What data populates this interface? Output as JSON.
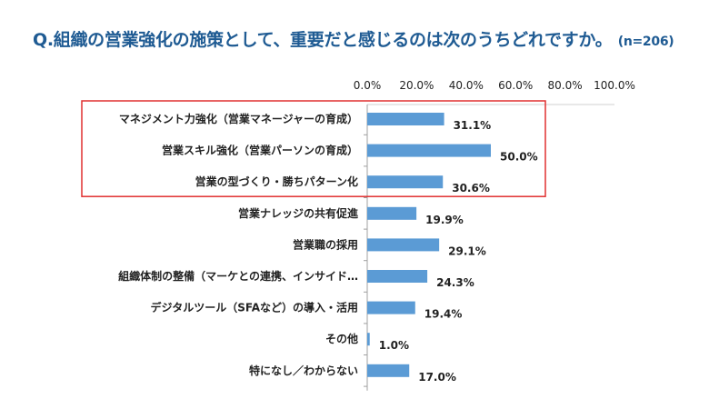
{
  "title": {
    "text": "Q.組織の営業強化の施策として、重要だと感じるのは次のうちどれですか。",
    "note": "(n=206)"
  },
  "chart_data": {
    "type": "bar",
    "orientation": "horizontal",
    "categories": [
      "マネジメント力強化（営業マネージャーの育成）",
      "営業スキル強化（営業パーソンの育成）",
      "営業の型づくり・勝ちパターン化",
      "営業ナレッジの共有促進",
      "営業職の採用",
      "組織体制の整備（マーケとの連携、インサイド…",
      "デジタルツール（SFAなど）の導入・活用",
      "その他",
      "特になし／わからない"
    ],
    "values": [
      31.1,
      50.0,
      30.6,
      19.9,
      29.1,
      24.3,
      19.4,
      1.0,
      17.0
    ],
    "value_labels": [
      "31.1%",
      "50.0%",
      "30.6%",
      "19.9%",
      "29.1%",
      "24.3%",
      "19.4%",
      "1.0%",
      "17.0%"
    ],
    "xlim": [
      0,
      100
    ],
    "x_ticks": [
      "0.0%",
      "20.0%",
      "40.0%",
      "60.0%",
      "80.0%",
      "100.0%"
    ],
    "x_axis_position": "top",
    "grid": false,
    "highlighted_categories": [
      0,
      1,
      2
    ],
    "bar_color": "#5b9bd5",
    "highlight_box_color": "#e03030",
    "title_color": "#1f5b93"
  }
}
